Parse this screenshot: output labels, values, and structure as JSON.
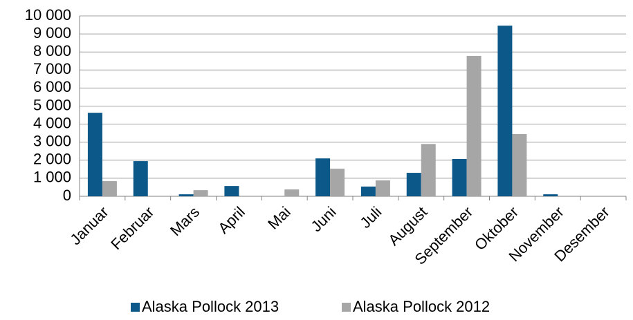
{
  "chart_data": {
    "type": "bar",
    "categories": [
      "Januar",
      "Februar",
      "Mars",
      "April",
      "Mai",
      "Juni",
      "Juli",
      "August",
      "September",
      "Oktober",
      "November",
      "Desember"
    ],
    "series": [
      {
        "name": "Alaska Pollock 2013",
        "color": "#0b5889",
        "values": [
          4630,
          1950,
          110,
          570,
          0,
          2100,
          540,
          1300,
          2070,
          9460,
          110,
          0
        ]
      },
      {
        "name": "Alaska Pollock 2012",
        "color": "#a6a6a6",
        "values": [
          840,
          0,
          340,
          0,
          380,
          1530,
          880,
          2900,
          7780,
          3450,
          0,
          0
        ]
      }
    ],
    "ylim": [
      0,
      10000
    ],
    "yticks": [
      0,
      {
        "value": 1000,
        "label": "1 000"
      },
      {
        "value": 2000,
        "label": "2 000"
      },
      {
        "value": 3000,
        "label": "3 000"
      },
      {
        "value": 4000,
        "label": "4 000"
      },
      {
        "value": 5000,
        "label": "5 000"
      },
      {
        "value": 6000,
        "label": "6 000"
      },
      {
        "value": 7000,
        "label": "7 000"
      },
      {
        "value": 8000,
        "label": "8 000"
      },
      {
        "value": 9000,
        "label": "9 000"
      },
      {
        "value": 10000,
        "label": "10 000"
      }
    ],
    "grid": true,
    "legend": "bottom"
  }
}
